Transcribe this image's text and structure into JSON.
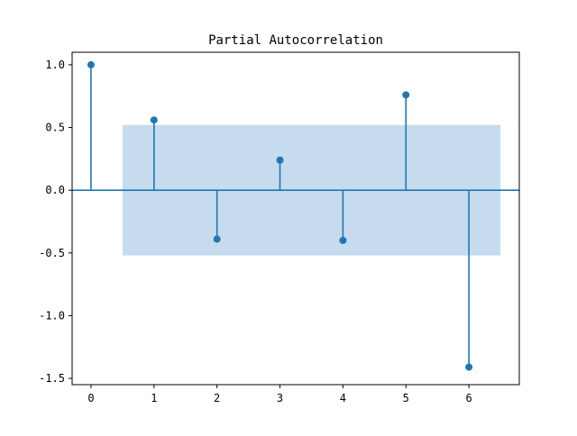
{
  "chart_data": {
    "type": "stem",
    "title": "Partial Autocorrelation",
    "xlabel": "",
    "ylabel": "",
    "x": [
      0,
      1,
      2,
      3,
      4,
      5,
      6
    ],
    "values": [
      1.0,
      0.56,
      -0.39,
      0.24,
      -0.4,
      0.76,
      -1.41
    ],
    "confidence_band": {
      "x_range": [
        0.5,
        6.5
      ],
      "lower": -0.52,
      "upper": 0.52
    },
    "xlim": [
      -0.3,
      6.8
    ],
    "ylim": [
      -1.55,
      1.1
    ],
    "x_ticks": [
      0,
      1,
      2,
      3,
      4,
      5,
      6
    ],
    "x_tick_labels": [
      "0",
      "1",
      "2",
      "3",
      "4",
      "5",
      "6"
    ],
    "y_ticks": [
      1.0,
      0.5,
      0.0,
      -0.5,
      -1.0,
      -1.5
    ],
    "y_tick_labels": [
      "1.0",
      "0.5",
      "0.0",
      "-0.5",
      "-1.0",
      "-1.5"
    ],
    "zero_line": true,
    "grid": false,
    "colors": {
      "stem": "#1f77b4",
      "band": "#c6dbed"
    }
  }
}
